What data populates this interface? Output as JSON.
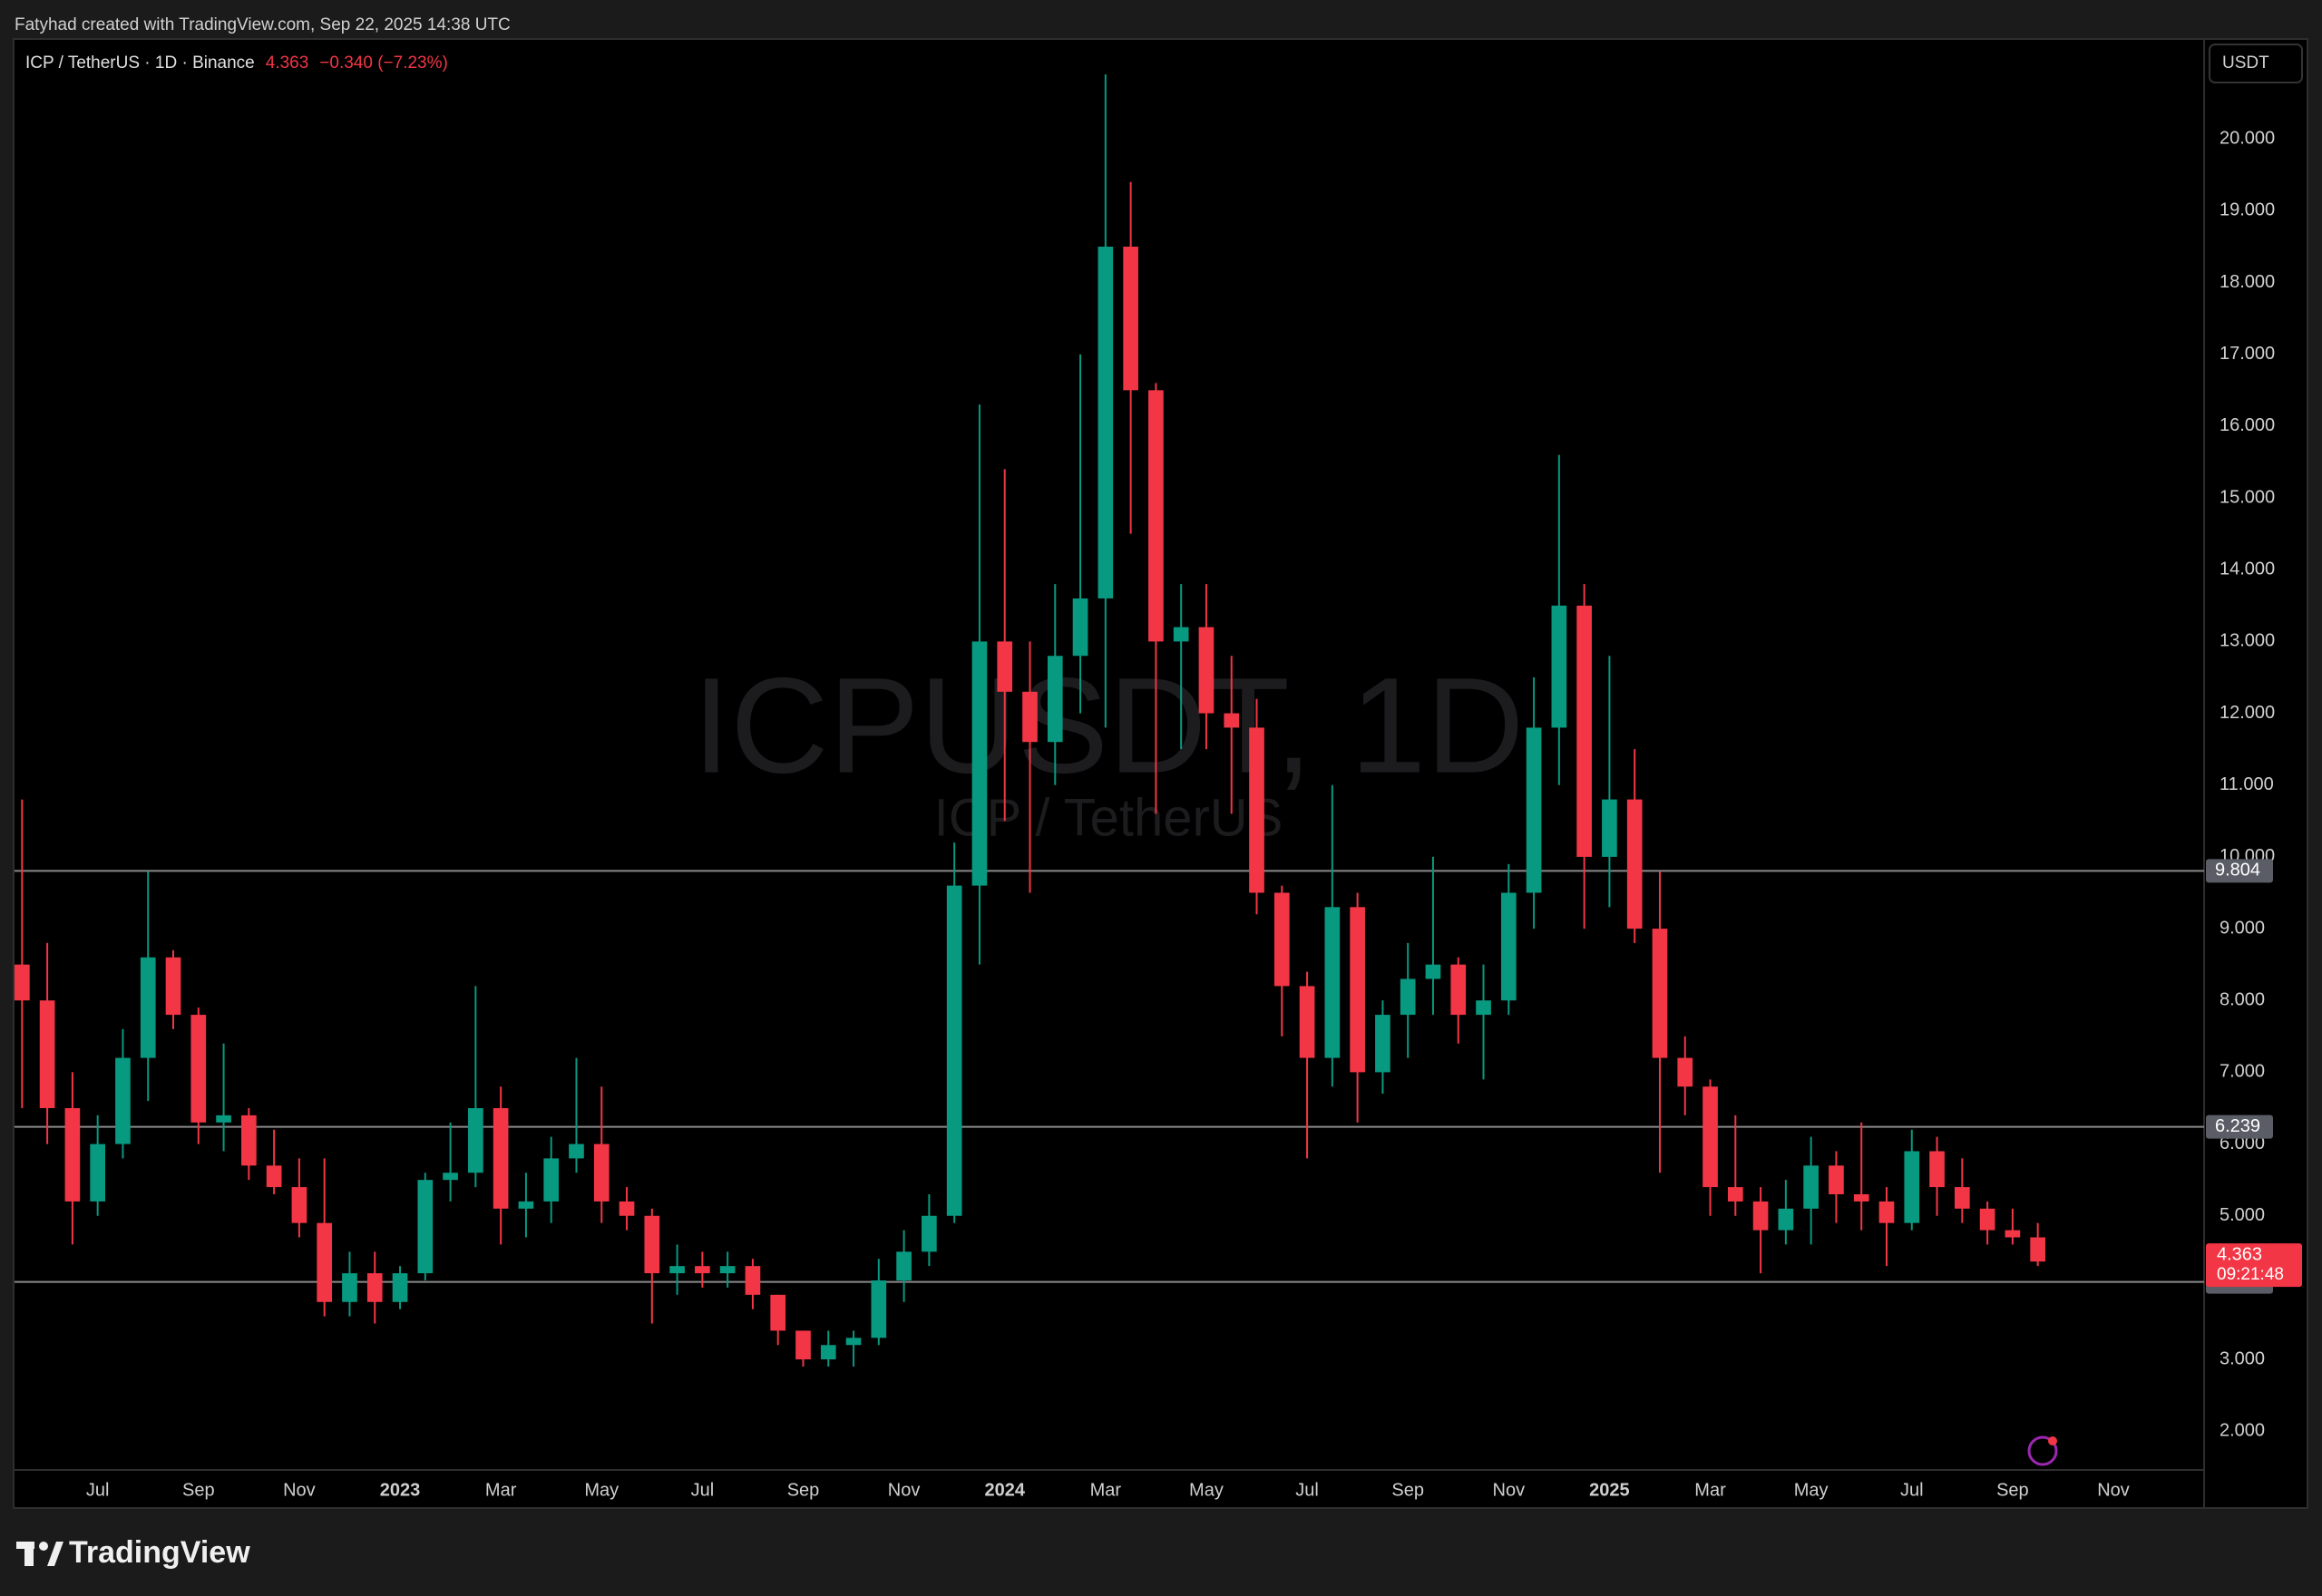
{
  "header": "Fatyhad created with TradingView.com, Sep 22, 2025 14:38 UTC",
  "logo": "TradingView",
  "currency_button": "USDT",
  "chart_data": {
    "type": "candlestick",
    "title": "ICP / TetherUS · 1D · Binance",
    "watermark": "ICPUSDT, 1D",
    "watermark_subtitle": "ICP / TetherUS",
    "last": 4.363,
    "change": "−0.340 (−7.23%)",
    "countdown": "09:21:48",
    "up_color": "#089981",
    "down_color": "#f23645",
    "level_color": "#8a8a8a",
    "levels": [
      9.804,
      6.239,
      4.079
    ],
    "x": [
      4.5,
      5,
      5.5,
      6,
      6.5,
      7,
      7.5,
      8,
      8.5,
      9,
      9.5,
      10,
      10.5,
      11,
      11.5,
      12,
      12.5,
      13,
      13.5,
      14,
      14.5,
      15,
      15.5,
      16,
      16.5,
      17,
      17.5,
      18,
      18.5,
      19,
      19.5,
      20,
      20.5,
      21,
      21.5,
      22,
      22.5,
      23,
      23.5,
      24,
      24.5,
      25,
      25.5,
      26,
      26.5,
      27,
      27.5,
      28,
      28.5,
      29,
      29.5,
      30,
      30.5,
      31,
      31.5,
      32,
      32.5,
      33,
      33.5,
      34,
      34.5,
      35,
      35.5,
      36,
      36.5,
      37,
      37.5,
      38,
      38.5,
      39,
      39.5,
      40,
      40.5,
      41,
      41.5,
      42,
      42.5,
      43,
      43.5,
      44,
      44.5
    ],
    "open": [
      8.5,
      8.0,
      6.5,
      5.2,
      6.0,
      7.2,
      8.6,
      7.8,
      6.3,
      6.4,
      5.7,
      5.4,
      4.9,
      3.8,
      4.2,
      3.8,
      4.2,
      5.5,
      5.6,
      6.5,
      5.1,
      5.2,
      5.8,
      6.0,
      5.2,
      5.0,
      4.2,
      4.3,
      4.2,
      4.3,
      3.9,
      3.4,
      3.0,
      3.2,
      3.3,
      4.1,
      4.5,
      5.0,
      9.6,
      13.0,
      12.3,
      11.6,
      12.8,
      13.6,
      18.5,
      16.5,
      13.0,
      13.2,
      12.0,
      11.8,
      9.5,
      8.2,
      7.2,
      9.3,
      7.0,
      7.8,
      8.3,
      8.5,
      7.8,
      8.0,
      9.5,
      11.8,
      13.5,
      10.0,
      10.8,
      9.0,
      7.2,
      6.8,
      5.4,
      5.2,
      4.8,
      5.1,
      5.7,
      5.3,
      5.2,
      4.9,
      5.9,
      5.4,
      5.1,
      4.8,
      4.7
    ],
    "high": [
      10.8,
      8.8,
      7.0,
      6.4,
      7.6,
      9.8,
      8.7,
      7.9,
      7.4,
      6.5,
      6.2,
      5.8,
      5.8,
      4.5,
      4.5,
      4.3,
      5.6,
      6.3,
      8.2,
      6.8,
      5.6,
      6.1,
      7.2,
      6.8,
      5.4,
      5.1,
      4.6,
      4.5,
      4.5,
      4.4,
      3.9,
      3.4,
      3.4,
      3.4,
      4.4,
      4.8,
      5.3,
      10.2,
      16.3,
      15.4,
      13.0,
      13.8,
      17.0,
      20.9,
      19.4,
      16.6,
      13.8,
      13.8,
      12.8,
      12.2,
      9.6,
      8.4,
      11.0,
      9.5,
      8.0,
      8.8,
      10.0,
      8.6,
      8.5,
      9.9,
      12.5,
      15.6,
      13.8,
      12.8,
      11.5,
      9.8,
      7.5,
      6.9,
      6.4,
      5.4,
      5.5,
      6.1,
      5.9,
      6.3,
      5.4,
      6.2,
      6.1,
      5.8,
      5.2,
      5.1,
      4.9
    ],
    "low": [
      6.5,
      6.0,
      4.6,
      5.0,
      5.8,
      6.6,
      7.6,
      6.0,
      5.9,
      5.5,
      5.3,
      4.7,
      3.6,
      3.6,
      3.5,
      3.7,
      4.1,
      5.2,
      5.4,
      4.6,
      4.7,
      4.9,
      5.6,
      4.9,
      4.8,
      3.5,
      3.9,
      4.0,
      4.0,
      3.7,
      3.2,
      2.9,
      2.9,
      2.9,
      3.2,
      3.8,
      4.3,
      4.9,
      8.5,
      10.5,
      9.5,
      11.0,
      12.0,
      11.8,
      14.5,
      10.6,
      11.5,
      11.5,
      10.6,
      9.2,
      7.5,
      5.8,
      6.8,
      6.3,
      6.7,
      7.2,
      7.8,
      7.4,
      6.9,
      7.8,
      9.0,
      11.0,
      9.0,
      9.3,
      8.8,
      5.6,
      6.4,
      5.0,
      5.0,
      4.2,
      4.6,
      4.6,
      4.9,
      4.8,
      4.3,
      4.8,
      5.0,
      4.9,
      4.6,
      4.6,
      4.3
    ],
    "close": [
      8.0,
      6.5,
      5.2,
      6.0,
      7.2,
      8.6,
      7.8,
      6.3,
      6.4,
      5.7,
      5.4,
      4.9,
      3.8,
      4.2,
      3.8,
      4.2,
      5.5,
      5.6,
      6.5,
      5.1,
      5.2,
      5.8,
      6.0,
      5.2,
      5.0,
      4.2,
      4.3,
      4.2,
      4.3,
      3.9,
      3.4,
      3.0,
      3.2,
      3.3,
      4.1,
      4.5,
      5.0,
      9.6,
      13.0,
      12.3,
      11.6,
      12.8,
      13.6,
      18.5,
      16.5,
      13.0,
      13.2,
      12.0,
      11.8,
      9.5,
      8.2,
      7.2,
      9.3,
      7.0,
      7.8,
      8.3,
      8.5,
      7.8,
      8.0,
      9.5,
      11.8,
      13.5,
      10.0,
      10.8,
      9.0,
      7.2,
      6.8,
      5.4,
      5.2,
      4.8,
      5.1,
      5.7,
      5.3,
      5.2,
      4.9,
      5.9,
      5.4,
      5.1,
      4.8,
      4.7,
      4.363
    ],
    "xlim": [
      4.35,
      47.8
    ],
    "xticks": [
      {
        "value": 6,
        "label": "Jul"
      },
      {
        "value": 8,
        "label": "Sep"
      },
      {
        "value": 10,
        "label": "Nov"
      },
      {
        "value": 12,
        "label": "2023"
      },
      {
        "value": 14,
        "label": "Mar"
      },
      {
        "value": 16,
        "label": "May"
      },
      {
        "value": 18,
        "label": "Jul"
      },
      {
        "value": 20,
        "label": "Sep"
      },
      {
        "value": 22,
        "label": "Nov"
      },
      {
        "value": 24,
        "label": "2024"
      },
      {
        "value": 26,
        "label": "Mar"
      },
      {
        "value": 28,
        "label": "May"
      },
      {
        "value": 30,
        "label": "Jul"
      },
      {
        "value": 32,
        "label": "Sep"
      },
      {
        "value": 34,
        "label": "Nov"
      },
      {
        "value": 36,
        "label": "2025"
      },
      {
        "value": 38,
        "label": "Mar"
      },
      {
        "value": 40,
        "label": "May"
      },
      {
        "value": 42,
        "label": "Jul"
      },
      {
        "value": 44,
        "label": "Sep"
      },
      {
        "value": 46,
        "label": "Nov"
      }
    ],
    "ylim": [
      1.46,
      21.38
    ],
    "yticks": [
      {
        "value": 2,
        "label": "2.000"
      },
      {
        "value": 3,
        "label": "3.000"
      },
      {
        "value": 4,
        "label": "4.000"
      },
      {
        "value": 5,
        "label": "5.000"
      },
      {
        "value": 6,
        "label": "6.000"
      },
      {
        "value": 7,
        "label": "7.000"
      },
      {
        "value": 8,
        "label": "8.000"
      },
      {
        "value": 9,
        "label": "9.000"
      },
      {
        "value": 10,
        "label": "10.000"
      },
      {
        "value": 11,
        "label": "11.000"
      },
      {
        "value": 12,
        "label": "12.000"
      },
      {
        "value": 13,
        "label": "13.000"
      },
      {
        "value": 14,
        "label": "14.000"
      },
      {
        "value": 15,
        "label": "15.000"
      },
      {
        "value": 16,
        "label": "16.000"
      },
      {
        "value": 17,
        "label": "17.000"
      },
      {
        "value": 18,
        "label": "18.000"
      },
      {
        "value": 19,
        "label": "19.000"
      },
      {
        "value": 20,
        "label": "20.000"
      }
    ],
    "grid": false
  }
}
